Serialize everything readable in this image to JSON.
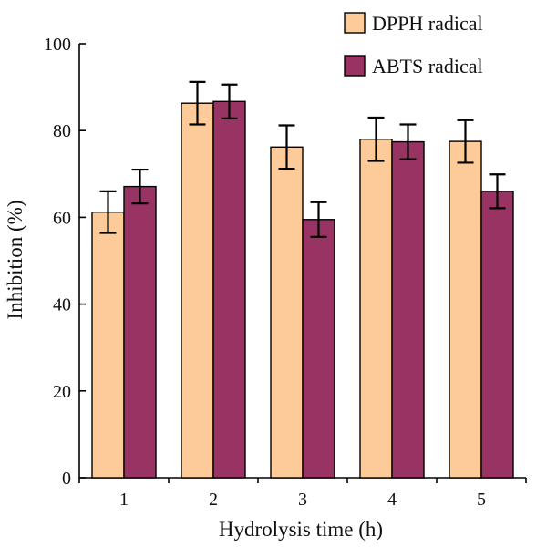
{
  "chart_data": {
    "type": "bar",
    "xlabel": "Hydrolysis time (h)",
    "ylabel": "Inhibition (%)",
    "ylim": [
      0,
      100
    ],
    "yticks": [
      0,
      20,
      40,
      60,
      80,
      100
    ],
    "categories": [
      "1",
      "2",
      "3",
      "4",
      "5"
    ],
    "series": [
      {
        "name": "DPPH radical",
        "color": "#FDCB9A",
        "values": [
          61.2,
          86.3,
          76.2,
          78.0,
          77.5
        ],
        "errors": [
          4.8,
          4.9,
          5.0,
          5.0,
          4.9
        ]
      },
      {
        "name": "ABTS radical",
        "color": "#983363",
        "values": [
          67.1,
          86.7,
          59.5,
          77.4,
          66.0
        ],
        "errors": [
          3.9,
          3.9,
          4.0,
          4.0,
          3.9
        ]
      }
    ],
    "legend_position": "top-right",
    "grid": false
  }
}
